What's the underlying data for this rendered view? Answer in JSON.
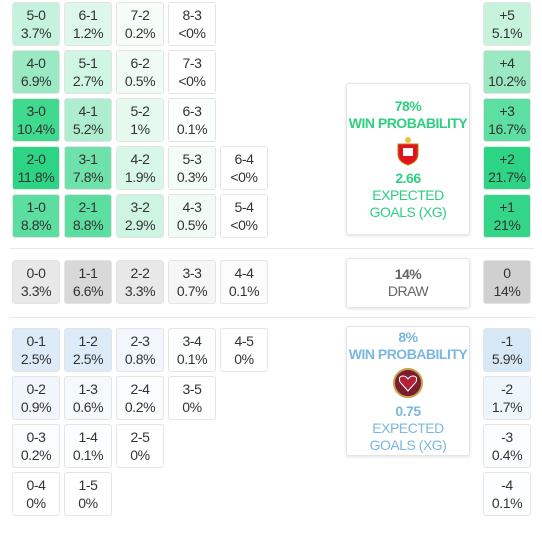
{
  "home": {
    "rows": [
      [
        {
          "score": "5-0",
          "prob": "3.7%",
          "color": "#c4f2dc"
        },
        {
          "score": "6-1",
          "prob": "1.2%",
          "color": "#ddf8eb"
        },
        {
          "score": "7-2",
          "prob": "0.2%",
          "color": "#f6fdf9"
        },
        {
          "score": "8-3",
          "prob": "<0%",
          "color": "#ffffff"
        }
      ],
      [
        {
          "score": "4-0",
          "prob": "6.9%",
          "color": "#9ae9c2"
        },
        {
          "score": "5-1",
          "prob": "2.7%",
          "color": "#cff5e3"
        },
        {
          "score": "6-2",
          "prob": "0.5%",
          "color": "#f0fbf5"
        },
        {
          "score": "7-3",
          "prob": "<0%",
          "color": "#ffffff"
        }
      ],
      [
        {
          "score": "3-0",
          "prob": "10.4%",
          "color": "#3fd98f"
        },
        {
          "score": "4-1",
          "prob": "5.2%",
          "color": "#aeedcf"
        },
        {
          "score": "5-2",
          "prob": "1%",
          "color": "#e5f9ef"
        },
        {
          "score": "6-3",
          "prob": "0.1%",
          "color": "#fafefc"
        }
      ],
      [
        {
          "score": "2-0",
          "prob": "11.8%",
          "color": "#2ed486"
        },
        {
          "score": "3-1",
          "prob": "7.8%",
          "color": "#6fe2ac"
        },
        {
          "score": "4-2",
          "prob": "1.9%",
          "color": "#d7f7e8"
        },
        {
          "score": "5-3",
          "prob": "0.3%",
          "color": "#f4fcf8"
        },
        {
          "score": "6-4",
          "prob": "<0%",
          "color": "#ffffff"
        }
      ],
      [
        {
          "score": "1-0",
          "prob": "8.8%",
          "color": "#5bde9f"
        },
        {
          "score": "2-1",
          "prob": "8.8%",
          "color": "#5bde9f"
        },
        {
          "score": "3-2",
          "prob": "2.9%",
          "color": "#cdf5e2"
        },
        {
          "score": "4-3",
          "prob": "0.5%",
          "color": "#f0fbf5"
        },
        {
          "score": "5-4",
          "prob": "<0%",
          "color": "#ffffff"
        }
      ]
    ],
    "margins": [
      {
        "label": "+5",
        "prob": "5.1%",
        "color": "#c7f3dd"
      },
      {
        "label": "+4",
        "prob": "10.2%",
        "color": "#9ae9c2"
      },
      {
        "label": "+3",
        "prob": "16.7%",
        "color": "#5ddfa2"
      },
      {
        "label": "+2",
        "prob": "21.7%",
        "color": "#2ed486"
      },
      {
        "label": "+1",
        "prob": "21%",
        "color": "#33d589"
      }
    ],
    "win_probability": "78%",
    "win_label": "WIN PROBABILITY",
    "xg": "2.66",
    "xg_label": "EXPECTED GOALS (XG)",
    "color": "#2ecf7f"
  },
  "draw": {
    "row": [
      {
        "score": "0-0",
        "prob": "3.3%",
        "color": "#e8e8e8"
      },
      {
        "score": "1-1",
        "prob": "6.6%",
        "color": "#d8d8d8"
      },
      {
        "score": "2-2",
        "prob": "3.3%",
        "color": "#e8e8e8"
      },
      {
        "score": "3-3",
        "prob": "0.7%",
        "color": "#f6f6f6"
      },
      {
        "score": "4-4",
        "prob": "0.1%",
        "color": "#fcfcfc"
      }
    ],
    "margin": {
      "label": "0",
      "prob": "14%",
      "color": "#d0d0d0"
    },
    "probability": "14%",
    "label": "DRAW",
    "color": "#666666"
  },
  "away": {
    "rows": [
      [
        {
          "score": "0-1",
          "prob": "2.5%",
          "color": "#dcebf7"
        },
        {
          "score": "1-2",
          "prob": "2.5%",
          "color": "#dcebf7"
        },
        {
          "score": "2-3",
          "prob": "0.8%",
          "color": "#f1f7fc"
        },
        {
          "score": "3-4",
          "prob": "0.1%",
          "color": "#fcfdfe"
        },
        {
          "score": "4-5",
          "prob": "0%",
          "color": "#ffffff"
        }
      ],
      [
        {
          "score": "0-2",
          "prob": "0.9%",
          "color": "#f0f6fb"
        },
        {
          "score": "1-3",
          "prob": "0.6%",
          "color": "#f4f9fc"
        },
        {
          "score": "2-4",
          "prob": "0.2%",
          "color": "#fafcfe"
        },
        {
          "score": "3-5",
          "prob": "0%",
          "color": "#ffffff"
        }
      ],
      [
        {
          "score": "0-3",
          "prob": "0.2%",
          "color": "#fafcfe"
        },
        {
          "score": "1-4",
          "prob": "0.1%",
          "color": "#fcfdfe"
        },
        {
          "score": "2-5",
          "prob": "0%",
          "color": "#ffffff"
        }
      ],
      [
        {
          "score": "0-4",
          "prob": "0%",
          "color": "#ffffff"
        },
        {
          "score": "1-5",
          "prob": "0%",
          "color": "#ffffff"
        }
      ]
    ],
    "margins": [
      {
        "label": "-1",
        "prob": "5.9%",
        "color": "#d6e8f6"
      },
      {
        "label": "-2",
        "prob": "1.7%",
        "color": "#eef5fb"
      },
      {
        "label": "-3",
        "prob": "0.4%",
        "color": "#fafcfe"
      },
      {
        "label": "-4",
        "prob": "0.1%",
        "color": "#fdfeff"
      }
    ],
    "win_probability": "8%",
    "win_label": "WIN PROBABILITY",
    "xg": "0.75",
    "xg_label": "EXPECTED GOALS (XG)",
    "color": "#7ab8e0"
  }
}
